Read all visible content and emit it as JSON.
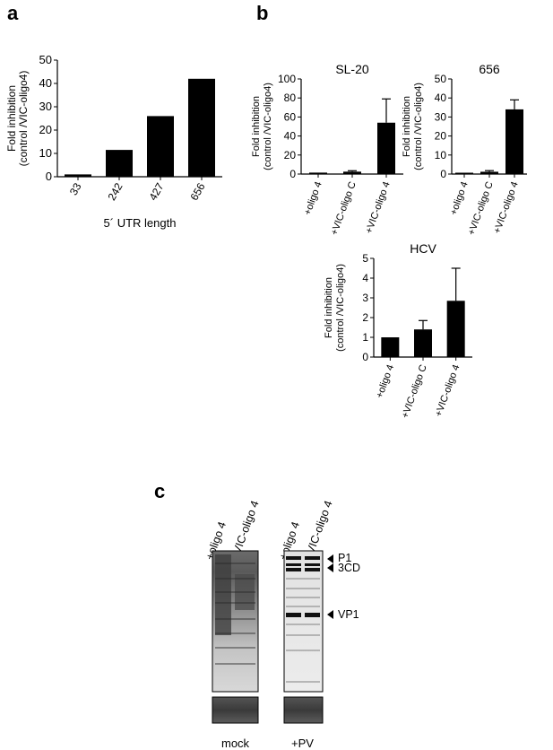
{
  "panels": {
    "a": "a",
    "b": "b",
    "c": "c"
  },
  "chart_data": [
    {
      "panel": "a",
      "type": "bar",
      "title": "",
      "categories": [
        "33",
        "242",
        "427",
        "656"
      ],
      "values": [
        1,
        11.5,
        26,
        42
      ],
      "xlabel": "5´ UTR length",
      "ylabel_lines": [
        "Fold inhibition",
        "(control /VIC-oligo4)"
      ],
      "ylim": [
        0,
        50
      ],
      "yticks": [
        0,
        10,
        20,
        30,
        40,
        50
      ],
      "error": null,
      "grid": false
    },
    {
      "panel": "b",
      "type": "bar",
      "title": "SL-20",
      "categories": [
        "+oligo 4",
        "+VIC-oligo C",
        "+VIC-oligo 4"
      ],
      "values": [
        1.5,
        2.5,
        54
      ],
      "error": [
        0,
        1,
        25
      ],
      "ylabel_lines": [
        "Fold inhibition",
        "(control /VIC-oligo4)"
      ],
      "ylim": [
        0,
        100
      ],
      "yticks": [
        0,
        20,
        40,
        60,
        80,
        100
      ],
      "grid": false
    },
    {
      "panel": "b",
      "type": "bar",
      "title": "656",
      "categories": [
        "+oligo 4",
        "+VIC-oligo C",
        "+VIC-oligo 4"
      ],
      "values": [
        0.7,
        1.2,
        34
      ],
      "error": [
        0,
        0.6,
        5
      ],
      "ylabel_lines": [
        "Fold inhibition",
        "(control /VIC-oligo4)"
      ],
      "ylim": [
        0,
        50
      ],
      "yticks": [
        0,
        10,
        20,
        30,
        40,
        50
      ],
      "grid": false
    },
    {
      "panel": "b",
      "type": "bar",
      "title": "HCV",
      "categories": [
        "+oligo 4",
        "+VIC-oligo C",
        "+VIC-oligo 4"
      ],
      "values": [
        1,
        1.4,
        2.85
      ],
      "error": [
        0,
        0.45,
        1.65
      ],
      "ylabel_lines": [
        "Fold inhibition",
        "(control /VIC-oligo4)"
      ],
      "ylim": [
        0,
        5
      ],
      "yticks": [
        0,
        1,
        2,
        3,
        4,
        5
      ],
      "grid": false
    }
  ],
  "blot": {
    "lanes": [
      "+oligo 4",
      "+VIC-oligo 4",
      "+oligo 4",
      "+VIC-oligo 4"
    ],
    "markers": [
      "P1",
      "3CD",
      "VP1"
    ],
    "conditions": [
      "mock",
      "+PV"
    ]
  }
}
